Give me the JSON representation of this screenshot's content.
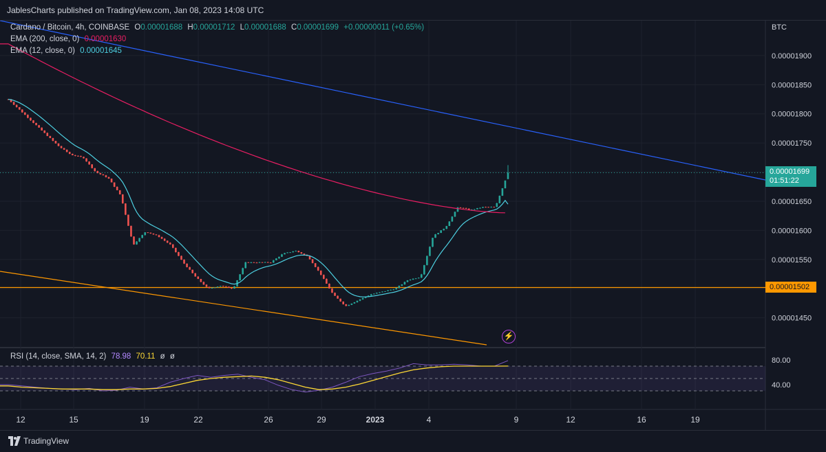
{
  "header": {
    "publisher": "JablesCharts published on TradingView.com, Jan 08, 2023 14:08 UTC"
  },
  "legend": {
    "symbol": "Cardano / Bitcoin, 4h, COINBASE",
    "o_label": "O",
    "o": "0.00001688",
    "h_label": "H",
    "h": "0.00001712",
    "l_label": "L",
    "l": "0.00001688",
    "c_label": "C",
    "c": "0.00001699",
    "change": "+0.00000011 (+0.65%)",
    "ema200_label": "EMA (200, close, 0)",
    "ema200_value": "0.00001630",
    "ema12_label": "EMA (12, close, 0)",
    "ema12_value": "0.00001645"
  },
  "rsi_legend": {
    "label": "RSI (14, close, SMA, 14, 2)",
    "rsi": "78.98",
    "sma": "70.11",
    "na1": "ø",
    "na2": "ø"
  },
  "price_scale": {
    "currency": "BTC",
    "labels": [
      "0.00001900",
      "0.00001850",
      "0.00001800",
      "0.00001750",
      "0.00001650",
      "0.00001600",
      "0.00001550",
      "0.00001450"
    ]
  },
  "rsi_scale": [
    "80.00",
    "40.00"
  ],
  "time_axis": [
    "12",
    "15",
    "19",
    "22",
    "26",
    "29",
    "2023",
    "4",
    "9",
    "12",
    "16",
    "19"
  ],
  "tags": {
    "last_price": "0.00001699",
    "countdown": "01:51:22",
    "support": "0.00001502"
  },
  "footer": {
    "brand": "TradingView"
  },
  "colors": {
    "up": "#26a69a",
    "down": "#ef5350",
    "ema200": "#e91e63",
    "ema12": "#4dd0e1",
    "trend_top": "#2962ff",
    "support": "#ff9800",
    "rsi": "#7e57c2",
    "rsi_ma": "#fdd835"
  },
  "chart_data": [
    {
      "type": "candlestick",
      "title": "Cardano / Bitcoin, 4h, COINBASE",
      "y_unit": "BTC",
      "ylim": [
        1.4e-05,
        1.96e-05
      ],
      "x_range": [
        "Dec 11, 2022",
        "Jan 22, 2023"
      ],
      "approx_closes": [
        1.825e-05,
        1.805e-05,
        1.785e-05,
        1.765e-05,
        1.745e-05,
        1.73e-05,
        1.725e-05,
        1.7e-05,
        1.69e-05,
        1.66e-05,
        1.575e-05,
        1.598e-05,
        1.59e-05,
        1.575e-05,
        1.545e-05,
        1.52e-05,
        1.5e-05,
        1.505e-05,
        1.5e-05,
        1.545e-05,
        1.545e-05,
        1.545e-05,
        1.56e-05,
        1.565e-05,
        1.555e-05,
        1.525e-05,
        1.49e-05,
        1.47e-05,
        1.48e-05,
        1.49e-05,
        1.495e-05,
        1.5e-05,
        1.515e-05,
        1.52e-05,
        1.59e-05,
        1.605e-05,
        1.64e-05,
        1.635e-05,
        1.64e-05,
        1.64e-05,
        1.699e-05
      ],
      "last": {
        "open": 1.688e-05,
        "high": 1.712e-05,
        "low": 1.688e-05,
        "close": 1.699e-05,
        "change": 1.1e-07,
        "change_pct": 0.65
      },
      "ema200_last": 1.63e-05,
      "ema12_last": 1.645e-05,
      "horizontal_support": 1.502e-05
    },
    {
      "type": "line",
      "title": "RSI (14, close, SMA, 14, 2)",
      "ylim": [
        0,
        100
      ],
      "bands": [
        30,
        50,
        70
      ],
      "series": [
        {
          "name": "RSI",
          "values": [
            40,
            38,
            36,
            34,
            33,
            32,
            34,
            30,
            31,
            36,
            33,
            35,
            44,
            50,
            55,
            52,
            55,
            57,
            52,
            48,
            39,
            32,
            28,
            31,
            36,
            44,
            53,
            58,
            62,
            67,
            74,
            72,
            72,
            73,
            72,
            70,
            70,
            78.98
          ]
        },
        {
          "name": "SMA",
          "values": [
            38,
            36,
            35,
            34,
            33,
            33,
            33,
            32,
            32,
            33,
            33,
            34,
            37,
            42,
            47,
            50,
            52,
            53,
            54,
            52,
            48,
            42,
            36,
            32,
            33,
            36,
            41,
            47,
            53,
            59,
            64,
            67,
            69,
            70,
            70,
            70,
            70,
            70.11
          ]
        }
      ]
    }
  ]
}
